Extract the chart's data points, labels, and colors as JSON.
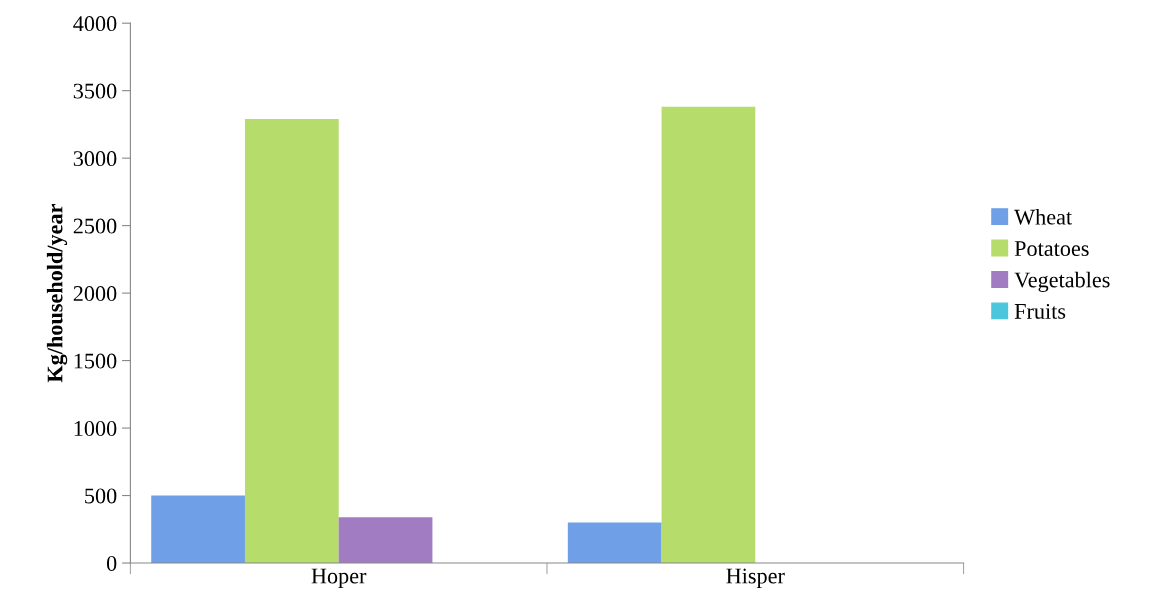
{
  "chart_data": {
    "type": "bar",
    "ylabel": "Kg/household/year",
    "categories": [
      "Hoper",
      "Hisper"
    ],
    "series": [
      {
        "name": "Wheat",
        "color": "#6f9fe6",
        "values": [
          500,
          300
        ]
      },
      {
        "name": "Potatoes",
        "color": "#b6dc6c",
        "values": [
          3290,
          3380
        ]
      },
      {
        "name": "Vegetables",
        "color": "#a27cc2",
        "values": [
          340,
          0
        ]
      },
      {
        "name": "Fruits",
        "color": "#4cc6dc",
        "values": [
          0,
          0
        ]
      }
    ],
    "ylim": [
      0,
      4000
    ],
    "yticks": [
      0,
      500,
      1000,
      1500,
      2000,
      2500,
      3000,
      3500,
      4000
    ],
    "grid": false,
    "legend": "right"
  }
}
